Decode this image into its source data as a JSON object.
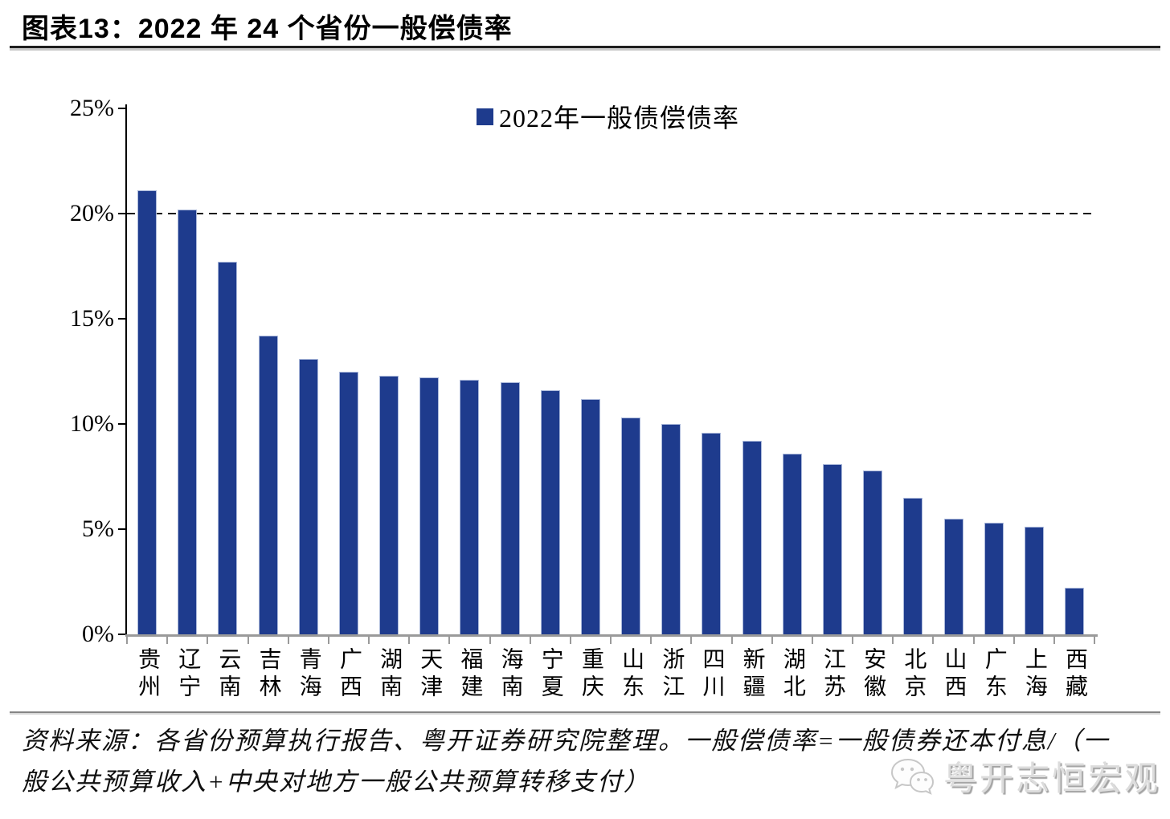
{
  "header": {
    "title": "图表13：2022 年 24 个省份一般偿债率"
  },
  "chart_data": {
    "type": "bar",
    "title": "图表13：2022 年 24 个省份一般偿债率",
    "legend_label": "2022年一般债偿债率",
    "legend_position": "top-center",
    "categories": [
      "贵州",
      "辽宁",
      "云南",
      "吉林",
      "青海",
      "广西",
      "湖南",
      "天津",
      "福建",
      "海南",
      "宁夏",
      "重庆",
      "山东",
      "浙江",
      "四川",
      "新疆",
      "湖北",
      "江苏",
      "安徽",
      "北京",
      "山西",
      "广东",
      "上海",
      "西藏"
    ],
    "values": [
      21.1,
      20.2,
      17.7,
      14.2,
      13.1,
      12.5,
      12.3,
      12.2,
      12.1,
      12.0,
      11.6,
      11.2,
      10.3,
      10.0,
      9.6,
      9.2,
      8.6,
      8.1,
      7.8,
      6.5,
      5.5,
      5.3,
      5.1,
      2.2
    ],
    "unit": "%",
    "ylim": [
      0,
      25
    ],
    "yticks": [
      "0%",
      "5%",
      "10%",
      "15%",
      "20%",
      "25%"
    ],
    "ytick_values": [
      0,
      5,
      10,
      15,
      20,
      25
    ],
    "reference_line_value": 20,
    "grid": false,
    "bar_color": "#1e3b8d",
    "reference_line_style": "dashed",
    "axis_color": "#000000",
    "baseline_color": "#9a9a9a"
  },
  "footer": {
    "source_line1": "资料来源：各省份预算执行报告、粤开证券研究院整理。一般偿债率=一般债券还本付息/（一",
    "source_line2": "般公共预算收入+中央对地方一般公共预算转移支付）",
    "watermark": "粤开志恒宏观"
  }
}
